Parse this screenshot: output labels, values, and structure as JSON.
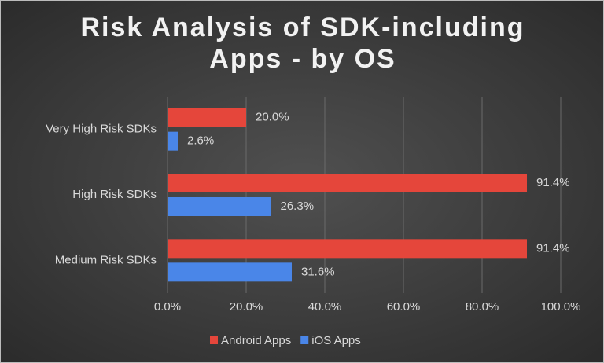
{
  "chart_data": {
    "type": "bar",
    "orientation": "horizontal",
    "title": "Risk Analysis of SDK-including Apps - by OS",
    "categories": [
      "Very High Risk SDKs",
      "High Risk SDKs",
      "Medium Risk SDKs"
    ],
    "series": [
      {
        "name": "Android Apps",
        "color": "#e5463b",
        "values": [
          20.0,
          91.4,
          91.4
        ],
        "value_labels": [
          "20.0%",
          "91.4%",
          "91.4%"
        ]
      },
      {
        "name": "iOS Apps",
        "color": "#4a86e8",
        "values": [
          2.6,
          26.3,
          31.6
        ],
        "value_labels": [
          "2.6%",
          "26.3%",
          "31.6%"
        ]
      }
    ],
    "xlim": [
      0,
      100
    ],
    "xticks": [
      {
        "value": 0,
        "label": "0.0%"
      },
      {
        "value": 20,
        "label": "20.0%"
      },
      {
        "value": 40,
        "label": "40.0%"
      },
      {
        "value": 60,
        "label": "60.0%"
      },
      {
        "value": 80,
        "label": "80.0%"
      },
      {
        "value": 100,
        "label": "100.0%"
      }
    ],
    "grid": true,
    "legend": "bottom"
  }
}
